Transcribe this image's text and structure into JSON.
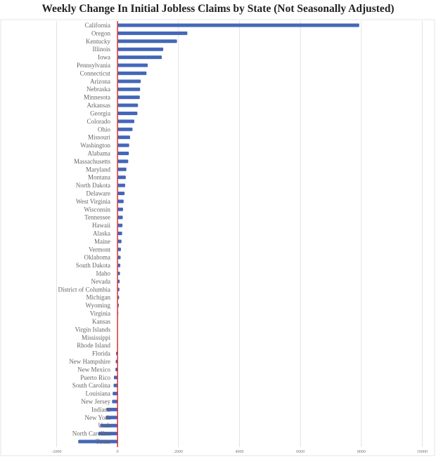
{
  "chart_data": {
    "type": "bar",
    "orientation": "horizontal",
    "title": "Weekly Change In Initial Jobless Claims by State (Not Seasonally Adjusted)",
    "xlabel": "",
    "ylabel": "",
    "xlim": [
      -2000,
      10000
    ],
    "xticks": [
      -2000,
      0,
      2000,
      4000,
      6000,
      8000,
      10000
    ],
    "xtick_labels": [
      "-2000",
      "0",
      "2000",
      "4000",
      "6000",
      "8000",
      "10000"
    ],
    "grid": true,
    "bar_color": "#4467b8",
    "zero_line_color": "#e03030",
    "categories": [
      "California",
      "Oregon",
      "Kentucky",
      "Illinois",
      "Iowa",
      "Pennsylvania",
      "Connecticut",
      "Arizona",
      "Nebraska",
      "Minnesota",
      "Arkansas",
      "Georgia",
      "Colorado",
      "Ohio",
      "Missouri",
      "Washington",
      "Alabama",
      "Massachusetts",
      "Maryland",
      "Montana",
      "North Dakota",
      "Delaware",
      "West Virginia",
      "Wisconsin",
      "Tennessee",
      "Hawaii",
      "Alaska",
      "Maine",
      "Vermont",
      "Oklahoma",
      "South Dakota",
      "Idaho",
      "Nevada",
      "District of Columbia",
      "Michigan",
      "Wyoming",
      "Virginia",
      "Kansas",
      "Virgin Islands",
      "Mississippi",
      "Rhode Island",
      "Florida",
      "New Hampshire",
      "New Mexico",
      "Puerto Rico",
      "South Carolina",
      "Louisiana",
      "New Jersey",
      "Indiana",
      "New York",
      "Utah",
      "North Carolina",
      "Texas"
    ],
    "values": [
      7930,
      2290,
      1950,
      1500,
      1450,
      990,
      950,
      760,
      740,
      730,
      670,
      650,
      550,
      490,
      410,
      380,
      370,
      350,
      290,
      270,
      250,
      230,
      200,
      180,
      170,
      160,
      150,
      130,
      110,
      100,
      90,
      80,
      70,
      60,
      50,
      40,
      20,
      0,
      0,
      0,
      -10,
      -50,
      -60,
      -70,
      -120,
      -130,
      -160,
      -180,
      -370,
      -390,
      -570,
      -630,
      -1290
    ]
  }
}
